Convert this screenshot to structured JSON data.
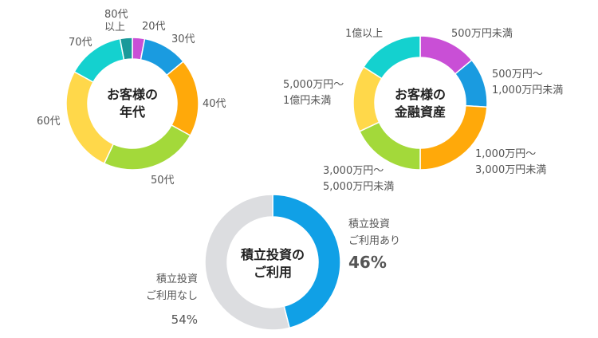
{
  "colors": {
    "purple": "#c94fd6",
    "blue": "#1a9be0",
    "orange": "#ffa90a",
    "green": "#a3d93a",
    "yellow": "#ffd84a",
    "cyan": "#14d1cf",
    "teal": "#1a9a9a",
    "gray": "#dcdde0",
    "pie_blue": "#10a0e6"
  },
  "chart_data": [
    {
      "type": "pie",
      "title": [
        "お客様の",
        "年代"
      ],
      "categories": [
        "20代",
        "30代",
        "40代",
        "50代",
        "60代",
        "70代",
        "80代以上"
      ],
      "labels": [
        [
          "20代"
        ],
        [
          "30代"
        ],
        [
          "40代"
        ],
        [
          "50代"
        ],
        [
          "60代"
        ],
        [
          "70代"
        ],
        [
          "80代",
          "以上"
        ]
      ],
      "values": [
        3,
        11,
        19,
        24,
        26,
        14,
        3
      ],
      "colors": [
        "#c94fd6",
        "#1a9be0",
        "#ffa90a",
        "#a3d93a",
        "#ffd84a",
        "#14d1cf",
        "#1a9a9a"
      ]
    },
    {
      "type": "pie",
      "title": [
        "お客様の",
        "金融資産"
      ],
      "categories": [
        "500万円未満",
        "500万円～1,000万円未満",
        "1,000万円～3,000万円未満",
        "3,000万円～5,000万円未満",
        "5,000万円～1億円未満",
        "1億円以上"
      ],
      "labels": [
        [
          "500万円未満"
        ],
        [
          "500万円～",
          "1,000万円未満"
        ],
        [
          "1,000万円～",
          "3,000万円未満"
        ],
        [
          "3,000万円～",
          "5,000万円未満"
        ],
        [
          "5,000万円～",
          "1億円未満"
        ],
        [
          "1億以上"
        ]
      ],
      "values": [
        14,
        12,
        24,
        18,
        16,
        16
      ],
      "colors": [
        "#c94fd6",
        "#1a9be0",
        "#ffa90a",
        "#a3d93a",
        "#ffd84a",
        "#14d1cf"
      ]
    },
    {
      "type": "pie",
      "title": [
        "積立投資の",
        "ご利用"
      ],
      "categories": [
        "積立投資ご利用あり",
        "積立投資ご利用なし"
      ],
      "labels": [
        [
          "積立投資",
          "ご利用あり"
        ],
        [
          "積立投資",
          "ご利用なし"
        ]
      ],
      "values": [
        46,
        54
      ],
      "percent_labels": [
        "46%",
        "54%"
      ],
      "colors": [
        "#10a0e6",
        "#dcdde0"
      ]
    }
  ]
}
